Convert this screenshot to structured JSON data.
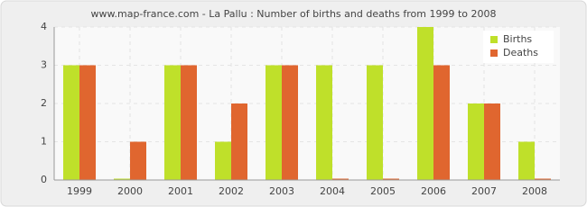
{
  "chart_data": {
    "type": "bar",
    "title": "www.map-france.com - La Pallu : Number of births and deaths from 1999 to 2008",
    "categories": [
      "1999",
      "2000",
      "2001",
      "2002",
      "2003",
      "2004",
      "2005",
      "2006",
      "2007",
      "2008"
    ],
    "series": [
      {
        "name": "Births",
        "color": "#bfe02a",
        "values": [
          3,
          0,
          3,
          1,
          3,
          3,
          3,
          4,
          2,
          1
        ]
      },
      {
        "name": "Deaths",
        "color": "#e0662f",
        "values": [
          3,
          1,
          3,
          2,
          3,
          0,
          0,
          3,
          2,
          0
        ]
      }
    ],
    "ylim": [
      0,
      4
    ],
    "yticks": [
      0,
      1,
      2,
      3,
      4
    ],
    "grid": true,
    "legend": "top-right"
  }
}
